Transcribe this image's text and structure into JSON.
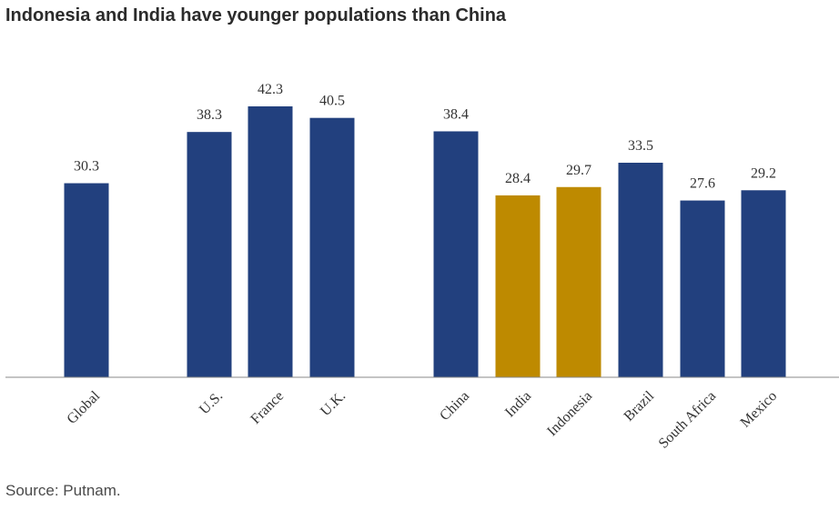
{
  "title": "Indonesia and India have younger populations than China",
  "source": "Source: Putnam.",
  "colors": {
    "primary": "#22407E",
    "highlight": "#BE8A00",
    "axis": "#888888"
  },
  "chart_data": {
    "type": "bar",
    "categories": [
      "Global",
      "U.S.",
      "France",
      "U.K.",
      "China",
      "India",
      "Indonesia",
      "Brazil",
      "South Africa",
      "Mexico"
    ],
    "values": [
      30.3,
      38.3,
      42.3,
      40.5,
      38.4,
      28.4,
      29.7,
      33.5,
      27.6,
      29.2
    ],
    "value_labels": [
      "30.3",
      "38.3",
      "42.3",
      "40.5",
      "38.4",
      "28.4",
      "29.7",
      "33.5",
      "27.6",
      "29.2"
    ],
    "highlighted": [
      "India",
      "Indonesia"
    ],
    "title": "Indonesia and India have younger populations than China",
    "xlabel": "",
    "ylabel": "",
    "ylim": [
      0,
      45
    ],
    "grid": false
  }
}
